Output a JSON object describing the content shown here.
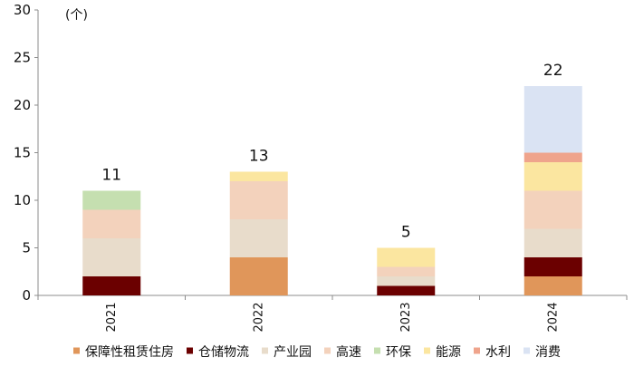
{
  "chart_data": {
    "type": "bar",
    "stacked": true,
    "unit_label": "(个)",
    "categories": [
      "2021",
      "2022",
      "2023",
      "2024"
    ],
    "ylim": [
      0,
      30
    ],
    "yticks": [
      0,
      5,
      10,
      15,
      20,
      25,
      30
    ],
    "grid": false,
    "legend_position": "bottom",
    "series": [
      {
        "name": "保障性租赁住房",
        "color": "#E0965A",
        "values": [
          0,
          4,
          0,
          2
        ]
      },
      {
        "name": "仓储物流",
        "color": "#6B0000",
        "values": [
          2,
          0,
          1,
          2
        ]
      },
      {
        "name": "产业园",
        "color": "#E8DCCB",
        "values": [
          4,
          4,
          1,
          3
        ]
      },
      {
        "name": "高速",
        "color": "#F3D2BC",
        "values": [
          3,
          4,
          1,
          4
        ]
      },
      {
        "name": "环保",
        "color": "#C5DFB0",
        "values": [
          2,
          0,
          0,
          0
        ]
      },
      {
        "name": "能源",
        "color": "#FBE6A0",
        "values": [
          0,
          1,
          2,
          3
        ]
      },
      {
        "name": "水利",
        "color": "#EFA48C",
        "values": [
          0,
          0,
          0,
          1
        ]
      },
      {
        "name": "消费",
        "color": "#DAE3F3",
        "values": [
          0,
          0,
          0,
          7
        ]
      }
    ],
    "totals": [
      11,
      13,
      5,
      22
    ]
  }
}
